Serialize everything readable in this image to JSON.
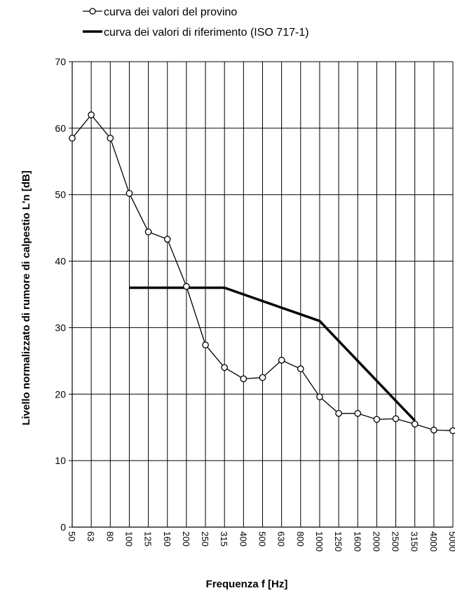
{
  "chart_data": {
    "type": "line",
    "title": "",
    "xlabel": "Frequenza f [Hz]",
    "ylabel": "Livello normalizzato di rumore di calpestio L'n [dB]",
    "ylim": [
      0,
      70
    ],
    "yticks": [
      "0",
      "10",
      "20",
      "30",
      "40",
      "50",
      "60",
      "70"
    ],
    "grid": true,
    "legend_position": "top-left",
    "categories": [
      "50",
      "63",
      "80",
      "100",
      "125",
      "160",
      "200",
      "250",
      "315",
      "400",
      "500",
      "630",
      "800",
      "1000",
      "1250",
      "1600",
      "2000",
      "2500",
      "3150",
      "4000",
      "5000"
    ],
    "series": [
      {
        "name": "curva dei valori del provino",
        "marker": "open-circle",
        "color": "#000000",
        "values": [
          58.5,
          62.0,
          58.5,
          50.2,
          44.4,
          43.3,
          36.2,
          27.4,
          24.0,
          22.3,
          22.5,
          25.1,
          23.8,
          19.6,
          17.1,
          17.1,
          16.2,
          16.3,
          15.5,
          14.6,
          14.5
        ]
      },
      {
        "name": "curva dei valori di riferimento (ISO 717-1)",
        "marker": "none",
        "color": "#000000",
        "values": [
          null,
          null,
          null,
          36.0,
          36.0,
          36.0,
          36.0,
          36.0,
          36.0,
          35.0,
          34.0,
          33.0,
          32.0,
          31.0,
          28.0,
          25.0,
          22.0,
          19.0,
          16.0,
          null,
          null
        ]
      }
    ]
  }
}
